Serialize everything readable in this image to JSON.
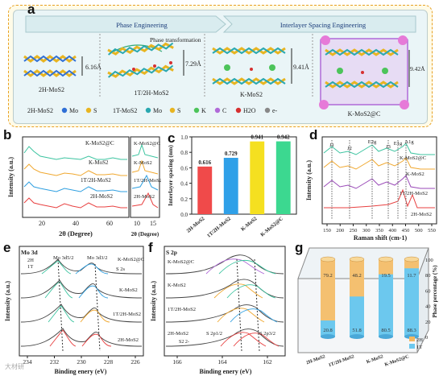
{
  "panel_a": {
    "label": "a",
    "header_phase": "Phase Engineering",
    "header_interlayer": "Interlayer Spacing Engineering",
    "phase_transformation": "Phase transformation",
    "spacings": [
      "6.16Å",
      "7.29Å",
      "9.41Å",
      "9.42Å"
    ],
    "structures": [
      "2H-MoS2",
      "1T/2H-MoS2",
      "K-MoS2",
      "K-MoS2@C"
    ],
    "legend": [
      {
        "text": "2H-MoS2",
        "kind": "title"
      },
      {
        "text": "Mo",
        "color": "#2f6fd6"
      },
      {
        "text": "S",
        "color": "#e8b521"
      },
      {
        "text": "1T-MoS2",
        "kind": "title"
      },
      {
        "text": "Mo",
        "color": "#2aa8b0"
      },
      {
        "text": "S",
        "color": "#e8b521"
      },
      {
        "text": "K",
        "color": "#4cc45a"
      },
      {
        "text": "C",
        "color": "#b06ad8"
      },
      {
        "text": "H2O",
        "color": "#d63030"
      },
      {
        "text": "e-",
        "color": "#888888"
      }
    ]
  },
  "panel_b": {
    "label": "b",
    "ylabel": "Intensity (a.u.)",
    "xlabel": "2θ (Degree)",
    "xlabel2": "2θ (Degree)",
    "xticks_main": [
      "20",
      "40",
      "60"
    ],
    "xticks_zoom": [
      "10",
      "15"
    ],
    "series": [
      "K-MoS2@C",
      "K-MoS2",
      "1T/2H-MoS2",
      "2H-MoS2"
    ],
    "colors": [
      "#3cc4a0",
      "#f0a830",
      "#2f9fe0",
      "#e84040"
    ]
  },
  "panel_c": {
    "label": "c",
    "chart_data": {
      "type": "bar",
      "categories": [
        "2H-MoS2",
        "1T/2H-MoS2",
        "K-MoS2",
        "K-MoS2@C"
      ],
      "values": [
        0.616,
        0.729,
        0.941,
        0.942
      ],
      "value_labels": [
        "0.616",
        "0.729",
        "0.941",
        "0.942"
      ],
      "ylabel": "Interlayer spacing (nm)",
      "ylim": [
        0.0,
        1.0
      ],
      "yticks": [
        "0.0",
        "0.2",
        "0.4",
        "0.6",
        "0.8",
        "1.0"
      ],
      "colors": [
        "#f04a4a",
        "#2fa0e8",
        "#f5e020",
        "#3cd890"
      ]
    }
  },
  "panel_d": {
    "label": "d",
    "ylabel": "Intensity (a.u.)",
    "xlabel": "Raman shift (cm-1)",
    "xticks": [
      "150",
      "200",
      "250",
      "300",
      "350",
      "400",
      "450",
      "500",
      "550"
    ],
    "peaks": [
      "J1",
      "J2",
      "E2g",
      "J3",
      "E1g",
      "A1g"
    ],
    "series": [
      "K-MoS2@C",
      "K-MoS2",
      "1T/2H-MoS2",
      "2H-MoS2"
    ],
    "colors": [
      "#3cc4a0",
      "#f0a830",
      "#2f9fe0",
      "#e84040"
    ]
  },
  "panel_e": {
    "label": "e",
    "title": "Mo 3d",
    "tags": [
      "2H",
      "1T"
    ],
    "peak_labels": [
      "Mo 3d5/2",
      "Mo 3d3/2",
      "S 2s"
    ],
    "series": [
      "K-MoS2@C",
      "K-MoS2",
      "1T/2H-MoS2",
      "2H-MoS2"
    ],
    "ylabel": "Intensity (a.u.)",
    "xlabel": "Binding enery (eV)",
    "xticks": [
      "234",
      "232",
      "230",
      "228",
      "226"
    ]
  },
  "panel_f": {
    "label": "f",
    "title": "S 2p",
    "peak_labels": [
      "S 2p1/2",
      "S 2p3/2",
      "S2 2-"
    ],
    "series": [
      "K-MoS2@C",
      "K-MoS2",
      "1T/2H-MoS2",
      "2H-MoS2"
    ],
    "ylabel": "Intensity (a.u.)",
    "xlabel": "Binding enery (eV)",
    "xticks": [
      "166",
      "164",
      "162"
    ]
  },
  "panel_g": {
    "label": "g",
    "chart_data": {
      "type": "bar",
      "categories": [
        "2H-MoS2",
        "1T/2H-MoS2",
        "K-MoS2",
        "K-MoS2@C"
      ],
      "series": [
        {
          "name": "2H",
          "values": [
            79.2,
            48.2,
            19.5,
            11.7
          ]
        },
        {
          "name": "1T",
          "values": [
            20.8,
            51.8,
            80.5,
            88.3
          ]
        }
      ],
      "labels_2H": [
        "79.2",
        "48.2",
        "19.5",
        "11.7"
      ],
      "labels_1T": [
        "20.8",
        "51.8",
        "80.5",
        "88.3"
      ],
      "ylabel": "Phase percentage (%)",
      "ylim": [
        0,
        100
      ],
      "yticks": [
        "0",
        "20",
        "40",
        "60",
        "80",
        "100"
      ],
      "legend": [
        "2H",
        "1T"
      ]
    }
  },
  "watermark": "大材研"
}
